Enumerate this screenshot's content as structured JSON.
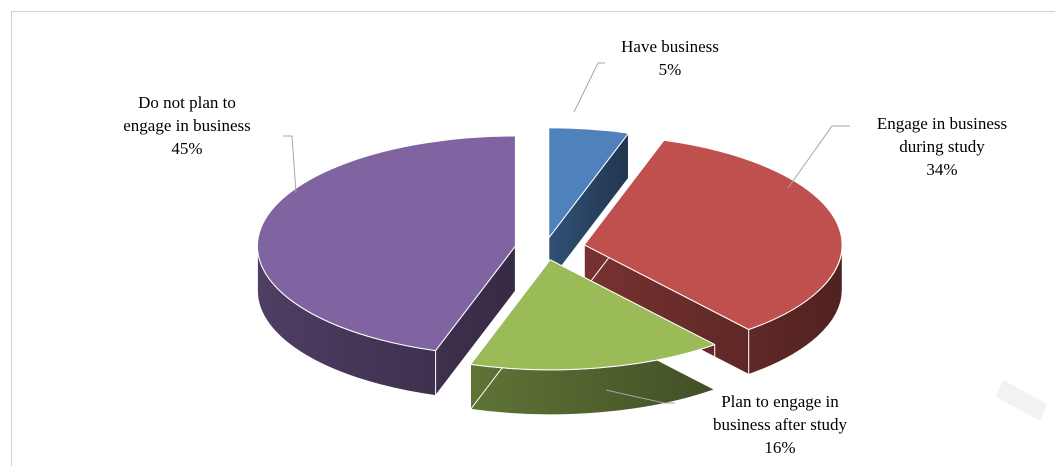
{
  "chart_data": {
    "type": "pie",
    "three_d": true,
    "exploded": true,
    "slices": [
      {
        "label_lines": [
          "Have business"
        ],
        "percent_label": "5%",
        "value": 5,
        "color": "#4f81bd"
      },
      {
        "label_lines": [
          "Engage in business",
          "during study"
        ],
        "percent_label": "34%",
        "value": 34,
        "color": "#c0504d"
      },
      {
        "label_lines": [
          "Plan to engage in",
          "business after study"
        ],
        "percent_label": "16%",
        "value": 16,
        "color": "#9bbb59"
      },
      {
        "label_lines": [
          "Do not plan to",
          "engage in business"
        ],
        "percent_label": "45%",
        "value": 45,
        "color": "#8064a2"
      }
    ],
    "legend": "none"
  }
}
